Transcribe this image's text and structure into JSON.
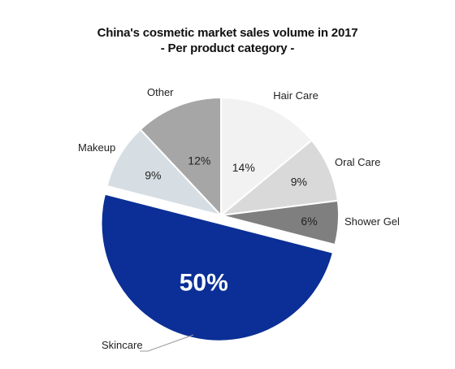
{
  "chart_data": {
    "type": "pie",
    "title": "China's cosmetic market sales volume in 2017",
    "subtitle": "- Per product category -",
    "slices": [
      {
        "label": "Hair Care",
        "value": 14,
        "value_label": "14%",
        "color": "#f2f2f2"
      },
      {
        "label": "Oral Care",
        "value": 9,
        "value_label": "9%",
        "color": "#d9d9d9"
      },
      {
        "label": "Shower Gel",
        "value": 6,
        "value_label": "6%",
        "color": "#7f7f7f"
      },
      {
        "label": "Skincare",
        "value": 50,
        "value_label": "50%",
        "color": "#0b2f96",
        "exploded": true
      },
      {
        "label": "Makeup",
        "value": 9,
        "value_label": "9%",
        "color": "#d6dee3"
      },
      {
        "label": "Other",
        "value": 12,
        "value_label": "12%",
        "color": "#a6a6a6"
      }
    ]
  }
}
